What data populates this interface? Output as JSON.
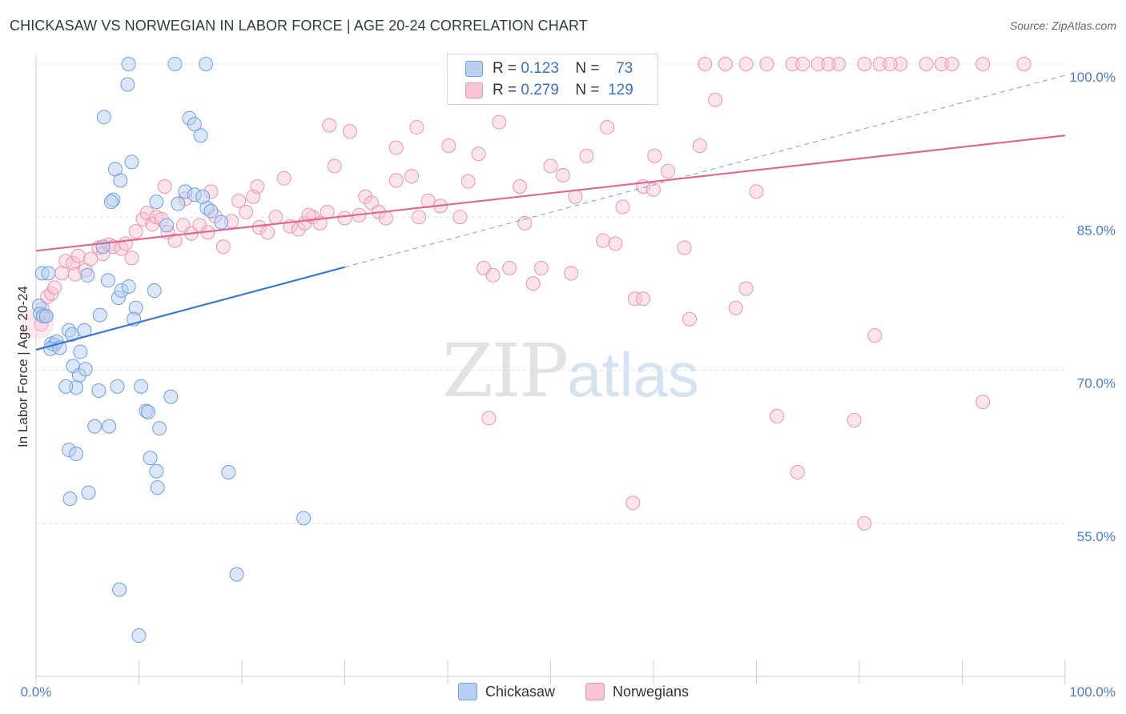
{
  "header": {
    "title": "CHICKASAW VS NORWEGIAN IN LABOR FORCE | AGE 20-24 CORRELATION CHART",
    "source": "Source: ZipAtlas.com"
  },
  "legend": {
    "r_label": "R =",
    "n_label": "N =",
    "rows": [
      {
        "r": "0.123",
        "n": "73"
      },
      {
        "r": "0.279",
        "n": "129"
      }
    ]
  },
  "watermark": {
    "part1": "ZIP",
    "part2": "atlas"
  },
  "colors": {
    "chickasaw_fill": "#b8d0f2",
    "chickasaw_stroke": "#6f9fdc",
    "chickasaw_line": "#3a78d4",
    "norwegian_fill": "#f8c4d4",
    "norwegian_stroke": "#ea94b0",
    "norwegian_line": "#e0698f",
    "tick_text": "#4a7cc8"
  },
  "chart_data": {
    "type": "scatter",
    "title": "CHICKASAW VS NORWEGIAN IN LABOR FORCE | AGE 20-24 CORRELATION CHART",
    "xlabel": "",
    "ylabel": "In Labor Force | Age 20-24",
    "xlim": [
      0,
      100
    ],
    "ylim": [
      40,
      100
    ],
    "x_tick_labels": [
      "0.0%",
      "100.0%"
    ],
    "y_ticks": [
      55,
      70,
      85,
      100
    ],
    "y_tick_labels": [
      "55.0%",
      "70.0%",
      "85.0%",
      "100.0%"
    ],
    "grid": true,
    "series": [
      {
        "name": "Chickasaw",
        "r": 0.123,
        "n": 73,
        "trend": {
          "x": [
            0,
            30
          ],
          "y": [
            72.0,
            80.1
          ]
        },
        "trend_dashed": {
          "x": [
            30,
            100
          ],
          "y": [
            80.1,
            98.9
          ]
        },
        "points": [
          [
            0.3,
            76.3
          ],
          [
            0.4,
            75.5
          ],
          [
            0.7,
            75.3
          ],
          [
            0.6,
            79.5
          ],
          [
            1.2,
            79.5
          ],
          [
            1.0,
            75.3
          ],
          [
            1.5,
            72.6
          ],
          [
            1.8,
            72.5
          ],
          [
            2.0,
            72.8
          ],
          [
            1.4,
            72.1
          ],
          [
            3.2,
            73.9
          ],
          [
            2.3,
            72.2
          ],
          [
            3.5,
            73.5
          ],
          [
            4.7,
            73.9
          ],
          [
            3.6,
            70.4
          ],
          [
            4.2,
            69.5
          ],
          [
            4.3,
            71.8
          ],
          [
            3.9,
            68.3
          ],
          [
            4.8,
            70.1
          ],
          [
            2.9,
            68.4
          ],
          [
            3.2,
            62.2
          ],
          [
            3.9,
            61.8
          ],
          [
            3.3,
            57.4
          ],
          [
            5.1,
            58.0
          ],
          [
            5.7,
            64.5
          ],
          [
            7.1,
            64.5
          ],
          [
            7.9,
            68.4
          ],
          [
            6.1,
            68.0
          ],
          [
            6.2,
            75.4
          ],
          [
            7.0,
            78.8
          ],
          [
            5.0,
            79.3
          ],
          [
            6.5,
            82.1
          ],
          [
            8.0,
            77.1
          ],
          [
            8.3,
            77.8
          ],
          [
            9.0,
            78.2
          ],
          [
            9.7,
            76.1
          ],
          [
            9.5,
            75.0
          ],
          [
            10.2,
            68.4
          ],
          [
            10.7,
            66.0
          ],
          [
            10.9,
            65.9
          ],
          [
            11.1,
            61.4
          ],
          [
            11.7,
            60.1
          ],
          [
            11.8,
            58.5
          ],
          [
            12.0,
            64.3
          ],
          [
            13.1,
            67.4
          ],
          [
            11.5,
            77.8
          ],
          [
            12.7,
            84.2
          ],
          [
            11.7,
            86.5
          ],
          [
            13.8,
            86.3
          ],
          [
            14.5,
            87.5
          ],
          [
            15.4,
            87.2
          ],
          [
            16.6,
            85.9
          ],
          [
            16.2,
            87.0
          ],
          [
            17.0,
            85.6
          ],
          [
            18.0,
            84.5
          ],
          [
            7.5,
            86.7
          ],
          [
            7.3,
            86.5
          ],
          [
            7.7,
            89.7
          ],
          [
            9.3,
            90.4
          ],
          [
            6.6,
            94.8
          ],
          [
            8.9,
            98.0
          ],
          [
            9.0,
            100.0
          ],
          [
            13.5,
            100.0
          ],
          [
            16.5,
            100.0
          ],
          [
            14.9,
            94.7
          ],
          [
            15.4,
            94.1
          ],
          [
            16.0,
            93.0
          ],
          [
            8.2,
            88.6
          ],
          [
            18.7,
            60.0
          ],
          [
            19.5,
            50.0
          ],
          [
            26.0,
            55.5
          ],
          [
            8.1,
            48.5
          ],
          [
            10.0,
            44.0
          ]
        ]
      },
      {
        "name": "Norwegians",
        "r": 0.279,
        "n": 129,
        "trend": {
          "x": [
            0,
            100
          ],
          "y": [
            81.7,
            93.0
          ]
        },
        "points": [
          [
            0.5,
            74.5
          ],
          [
            0.6,
            76.0
          ],
          [
            0.9,
            75.3
          ],
          [
            1.1,
            77.2
          ],
          [
            1.5,
            77.5
          ],
          [
            1.8,
            78.1
          ],
          [
            2.5,
            79.5
          ],
          [
            2.9,
            80.7
          ],
          [
            3.6,
            80.5
          ],
          [
            3.8,
            79.4
          ],
          [
            4.1,
            81.2
          ],
          [
            4.8,
            79.8
          ],
          [
            5.3,
            80.9
          ],
          [
            6.1,
            82.0
          ],
          [
            6.5,
            81.4
          ],
          [
            7.1,
            82.3
          ],
          [
            7.5,
            82.1
          ],
          [
            8.3,
            81.9
          ],
          [
            8.7,
            82.4
          ],
          [
            9.3,
            81.0
          ],
          [
            9.7,
            83.6
          ],
          [
            10.4,
            84.8
          ],
          [
            10.8,
            85.4
          ],
          [
            11.3,
            84.3
          ],
          [
            11.7,
            85.0
          ],
          [
            12.2,
            84.8
          ],
          [
            12.8,
            83.5
          ],
          [
            13.5,
            82.7
          ],
          [
            14.3,
            84.2
          ],
          [
            15.1,
            83.4
          ],
          [
            15.9,
            84.2
          ],
          [
            16.7,
            83.5
          ],
          [
            17.4,
            85.1
          ],
          [
            18.2,
            82.1
          ],
          [
            19.0,
            84.6
          ],
          [
            19.7,
            86.6
          ],
          [
            20.4,
            85.5
          ],
          [
            21.1,
            87.0
          ],
          [
            21.7,
            84.0
          ],
          [
            22.5,
            83.5
          ],
          [
            23.3,
            85.0
          ],
          [
            24.1,
            88.8
          ],
          [
            24.7,
            84.1
          ],
          [
            25.5,
            83.8
          ],
          [
            26.1,
            84.4
          ],
          [
            26.9,
            85.0
          ],
          [
            27.6,
            84.4
          ],
          [
            28.3,
            85.5
          ],
          [
            29.0,
            90.0
          ],
          [
            30.0,
            84.9
          ],
          [
            31.4,
            85.2
          ],
          [
            32.0,
            87.0
          ],
          [
            32.6,
            86.4
          ],
          [
            33.3,
            85.5
          ],
          [
            34.0,
            84.9
          ],
          [
            35.0,
            88.6
          ],
          [
            36.5,
            89.0
          ],
          [
            37.2,
            85.0
          ],
          [
            38.1,
            86.6
          ],
          [
            39.3,
            86.1
          ],
          [
            40.1,
            92.0
          ],
          [
            41.2,
            85.0
          ],
          [
            42.0,
            88.5
          ],
          [
            43.5,
            80.0
          ],
          [
            44.4,
            79.3
          ],
          [
            46.0,
            80.0
          ],
          [
            47.5,
            84.4
          ],
          [
            48.3,
            78.5
          ],
          [
            49.1,
            80.0
          ],
          [
            50.0,
            90.0
          ],
          [
            51.2,
            89.1
          ],
          [
            52.4,
            87.0
          ],
          [
            53.5,
            91.0
          ],
          [
            55.1,
            82.7
          ],
          [
            56.3,
            82.4
          ],
          [
            57.0,
            86.0
          ],
          [
            58.2,
            77.0
          ],
          [
            59.0,
            88.0
          ],
          [
            60.1,
            91.0
          ],
          [
            61.4,
            89.5
          ],
          [
            63.0,
            82.0
          ],
          [
            64.5,
            92.0
          ],
          [
            66.0,
            96.5
          ],
          [
            67.0,
            100.0
          ],
          [
            69.0,
            100.0
          ],
          [
            71.0,
            100.0
          ],
          [
            73.5,
            100.0
          ],
          [
            76.0,
            100.0
          ],
          [
            78.0,
            100.0
          ],
          [
            80.5,
            100.0
          ],
          [
            82.0,
            100.0
          ],
          [
            84.0,
            100.0
          ],
          [
            86.5,
            100.0
          ],
          [
            88.0,
            100.0
          ],
          [
            89.0,
            100.0
          ],
          [
            92.0,
            100.0
          ],
          [
            96.0,
            100.0
          ],
          [
            58.0,
            57.0
          ],
          [
            74.0,
            60.0
          ],
          [
            80.5,
            55.0
          ],
          [
            72.0,
            65.5
          ],
          [
            63.5,
            75.0
          ],
          [
            59.0,
            77.0
          ],
          [
            69.0,
            78.0
          ],
          [
            52.0,
            79.5
          ],
          [
            47.0,
            88.0
          ],
          [
            43.0,
            91.2
          ],
          [
            37.0,
            93.8
          ],
          [
            35.0,
            91.8
          ],
          [
            28.5,
            94.0
          ],
          [
            14.5,
            86.8
          ],
          [
            12.5,
            88.0
          ],
          [
            21.5,
            88.0
          ],
          [
            26.5,
            85.2
          ],
          [
            17.0,
            87.5
          ],
          [
            30.5,
            93.4
          ],
          [
            45.0,
            94.3
          ],
          [
            55.5,
            93.8
          ],
          [
            60.0,
            87.7
          ],
          [
            70.0,
            87.5
          ],
          [
            68.0,
            76.1
          ],
          [
            44.0,
            65.3
          ],
          [
            79.5,
            65.1
          ],
          [
            81.5,
            73.4
          ],
          [
            92.0,
            66.9
          ],
          [
            83.0,
            100.0
          ],
          [
            65.0,
            100.0
          ],
          [
            74.5,
            100.0
          ],
          [
            77.0,
            100.0
          ]
        ]
      }
    ]
  }
}
